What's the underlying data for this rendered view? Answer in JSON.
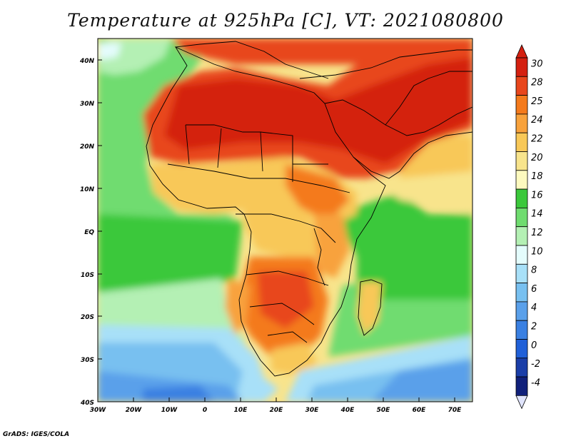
{
  "title": "Temperature at 925hPa [C], VT: 2021080800",
  "credit": "GrADS: IGES/COLA",
  "map": {
    "variable": "Temperature at 925hPa",
    "units": "C",
    "valid_time": "2021080800",
    "lat_labels": [
      "40N",
      "30N",
      "20N",
      "10N",
      "EQ",
      "10S",
      "20S",
      "30S",
      "40S"
    ],
    "lon_labels": [
      "30W",
      "20W",
      "10W",
      "0",
      "10E",
      "20E",
      "30E",
      "40E",
      "50E",
      "60E",
      "70E"
    ],
    "lat_range": [
      -40,
      45
    ],
    "lon_range": [
      -30,
      75
    ]
  },
  "colorbar": {
    "labels": [
      "30",
      "28",
      "25",
      "24",
      "22",
      "20",
      "18",
      "16",
      "14",
      "12",
      "10",
      "8",
      "6",
      "4",
      "2",
      "0",
      "-2",
      "-4"
    ],
    "colors": [
      "#d42010",
      "#e8461c",
      "#f47a1c",
      "#f8a23c",
      "#f8c858",
      "#f8e48c",
      "#fdfabf",
      "#3bc83b",
      "#6fdc6f",
      "#b4f0b4",
      "#e4fcfc",
      "#a8e0f8",
      "#78c0f0",
      "#5aa0ea",
      "#3a80e2",
      "#2060d8",
      "#1a3ea8",
      "#10207a"
    ],
    "extend": "both"
  }
}
